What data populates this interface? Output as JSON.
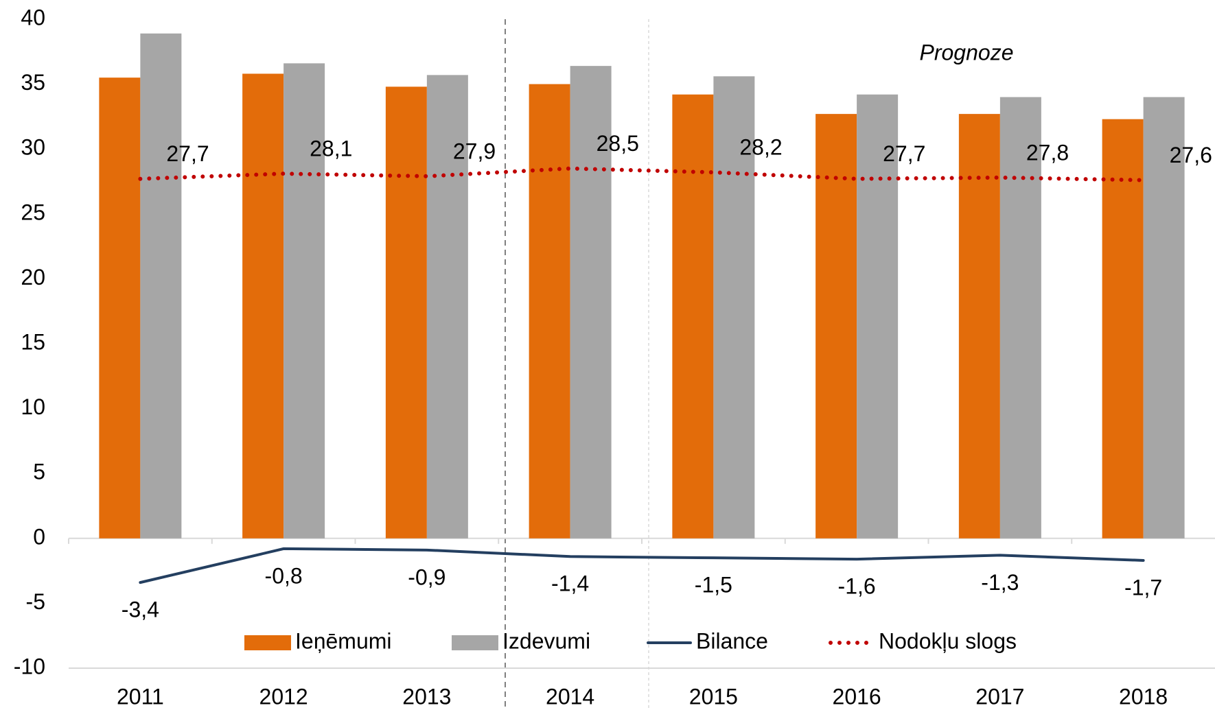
{
  "chart_data": {
    "type": "bar",
    "categories": [
      "2011",
      "2012",
      "2013",
      "2014",
      "2015",
      "2016",
      "2017",
      "2018"
    ],
    "series": [
      {
        "name": "Ieņēmumi",
        "type": "bar",
        "color": "#e36c0a",
        "values": [
          35.5,
          35.8,
          34.8,
          35.0,
          34.2,
          32.7,
          32.7,
          32.3
        ]
      },
      {
        "name": "Izdevumi",
        "type": "bar",
        "color": "#a6a6a6",
        "values": [
          38.9,
          36.6,
          35.7,
          36.4,
          35.6,
          34.2,
          34.0,
          34.0
        ]
      },
      {
        "name": "Bilance",
        "type": "line",
        "color": "#243f60",
        "values": [
          -3.4,
          -0.8,
          -0.9,
          -1.4,
          -1.5,
          -1.6,
          -1.3,
          -1.7
        ],
        "value_labels": [
          "-3,4",
          "-0,8",
          "-0,9",
          "-1,4",
          "-1,5",
          "-1,6",
          "-1,3",
          "-1,7"
        ]
      },
      {
        "name": "Nodokļu slogs",
        "type": "line",
        "style": "dotted",
        "color": "#c00000",
        "values": [
          27.7,
          28.1,
          27.9,
          28.5,
          28.2,
          27.7,
          27.8,
          27.6
        ],
        "value_labels": [
          "27,7",
          "28,1",
          "27,9",
          "28,5",
          "28,2",
          "27,7",
          "27,8",
          "27,6"
        ]
      }
    ],
    "annotations": [
      "Prognoze"
    ],
    "ylim": [
      -10,
      40
    ],
    "yticks": [
      -10,
      -5,
      0,
      5,
      10,
      15,
      20,
      25,
      30,
      35,
      40
    ],
    "grid": false,
    "legend": "bottom"
  }
}
